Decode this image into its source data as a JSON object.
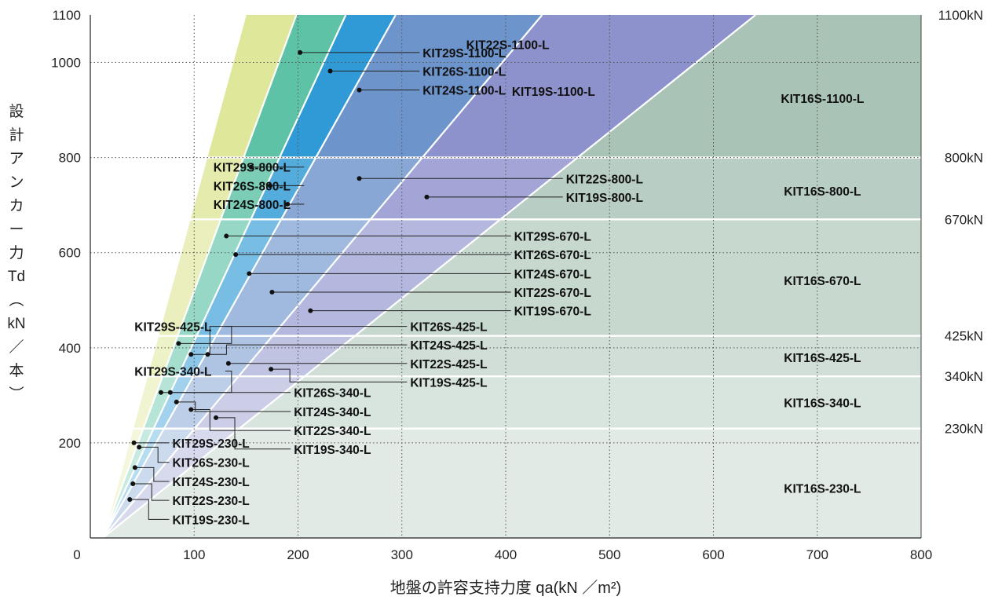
{
  "chart_data": {
    "type": "area",
    "xlabel": "地盤の許容支持力度 qa(kN ／m²)",
    "ylabel_lines": [
      "設",
      "計",
      "ア",
      "ン",
      "カ",
      "ー",
      "力",
      "Td",
      "︵",
      "kN",
      "／",
      "本",
      "︶"
    ],
    "xlim": [
      0,
      800
    ],
    "ylim": [
      0,
      1100
    ],
    "x_ticks": [
      0,
      100,
      200,
      300,
      400,
      500,
      600,
      700,
      800
    ],
    "y_ticks": [
      200,
      400,
      600,
      800,
      1000,
      1100
    ],
    "grid": true,
    "capacity_levels": [
      {
        "value": 230,
        "label": "230kN"
      },
      {
        "value": 340,
        "label": "340kN"
      },
      {
        "value": 425,
        "label": "425kN"
      },
      {
        "value": 670,
        "label": "670kN"
      },
      {
        "value": 800,
        "label": "800kN"
      },
      {
        "value": 1100,
        "label": "1100kN"
      }
    ],
    "boundaries": [
      {
        "slope": 8.0
      },
      {
        "slope": 5.9
      },
      {
        "slope": 4.7
      },
      {
        "slope": 3.9
      },
      {
        "slope": 2.6
      },
      {
        "slope": 1.75
      }
    ],
    "series": [
      {
        "name": "KIT29S",
        "color": "#dfe79a"
      },
      {
        "name": "KIT26S",
        "color": "#5ec3a6"
      },
      {
        "name": "KIT24S",
        "color": "#2f9ad6"
      },
      {
        "name": "KIT22S",
        "color": "#6e94cc"
      },
      {
        "name": "KIT19S",
        "color": "#8e92cc"
      },
      {
        "name": "KIT16S",
        "color": "#a9c3b6"
      }
    ],
    "labels": [
      {
        "text": "KIT29S-1100-L",
        "point": [
          202,
          1021
        ],
        "anchor": [
          317,
          1021
        ]
      },
      {
        "text": "KIT26S-1100-L",
        "point": [
          231,
          982
        ],
        "anchor": [
          317,
          982
        ]
      },
      {
        "text": "KIT24S-1100-L",
        "point": [
          259,
          942
        ],
        "anchor": [
          317,
          942
        ]
      },
      {
        "text": "KIT22S-1100-L",
        "inside": [
          402,
          1038
        ]
      },
      {
        "text": "KIT19S-1100-L",
        "inside": [
          446,
          940
        ]
      },
      {
        "text": "KIT16S-1100-L",
        "inside": [
          705,
          925
        ]
      },
      {
        "text": "KIT29S-800-L",
        "point": [
          155,
          780
        ],
        "anchor": [
          114,
          780
        ]
      },
      {
        "text": "KIT26S-800-L",
        "point": [
          173,
          741
        ],
        "anchor": [
          114,
          741
        ]
      },
      {
        "text": "KIT24S-800-L",
        "point": [
          190,
          702
        ],
        "anchor": [
          114,
          702
        ]
      },
      {
        "text": "KIT22S-800-L",
        "point": [
          259,
          756
        ],
        "anchor": [
          455,
          756
        ]
      },
      {
        "text": "KIT19S-800-L",
        "point": [
          324,
          717
        ],
        "anchor": [
          455,
          717
        ]
      },
      {
        "text": "KIT16S-800-L",
        "inside": [
          705,
          730
        ]
      },
      {
        "text": "KIT29S-670-L",
        "point": [
          131,
          635
        ],
        "anchor": [
          405,
          635
        ]
      },
      {
        "text": "KIT26S-670-L",
        "point": [
          140,
          596
        ],
        "anchor": [
          405,
          596
        ]
      },
      {
        "text": "KIT24S-670-L",
        "point": [
          153,
          556
        ],
        "anchor": [
          405,
          556
        ]
      },
      {
        "text": "KIT22S-670-L",
        "point": [
          175,
          517
        ],
        "anchor": [
          405,
          517
        ]
      },
      {
        "text": "KIT19S-670-L",
        "point": [
          212,
          478
        ],
        "anchor": [
          405,
          478
        ]
      },
      {
        "text": "KIT16S-670-L",
        "inside": [
          705,
          542
        ]
      },
      {
        "text": "KIT29S-425-L",
        "point": [
          85,
          409
        ],
        "anchor": [
          38,
          445
        ]
      },
      {
        "text": "KIT26S-425-L",
        "point": [
          97,
          386
        ],
        "anchor": [
          305,
          445
        ]
      },
      {
        "text": "KIT24S-425-L",
        "point": [
          113,
          386
        ],
        "anchor": [
          305,
          406
        ]
      },
      {
        "text": "KIT22S-425-L",
        "point": [
          133,
          367
        ],
        "anchor": [
          305,
          367
        ]
      },
      {
        "text": "KIT19S-425-L",
        "point": [
          174,
          355
        ],
        "anchor": [
          305,
          328
        ]
      },
      {
        "text": "KIT16S-425-L",
        "inside": [
          705,
          380
        ]
      },
      {
        "text": "KIT29S-340-L",
        "point": [
          68,
          306
        ],
        "anchor": [
          38,
          351
        ]
      },
      {
        "text": "KIT26S-340-L",
        "point": [
          77,
          306
        ],
        "anchor": [
          193,
          306
        ]
      },
      {
        "text": "KIT24S-340-L",
        "point": [
          83,
          286
        ],
        "anchor": [
          193,
          266
        ]
      },
      {
        "text": "KIT22S-340-L",
        "point": [
          97,
          270
        ],
        "anchor": [
          193,
          226
        ]
      },
      {
        "text": "KIT19S-340-L",
        "point": [
          121,
          253
        ],
        "anchor": [
          193,
          187
        ]
      },
      {
        "text": "KIT16S-340-L",
        "inside": [
          705,
          285
        ]
      },
      {
        "text": "KIT29S-230-L",
        "point": [
          42,
          200
        ],
        "anchor": [
          76,
          200
        ]
      },
      {
        "text": "KIT26S-230-L",
        "point": [
          47,
          191
        ],
        "anchor": [
          76,
          159
        ]
      },
      {
        "text": "KIT24S-230-L",
        "point": [
          43,
          148
        ],
        "anchor": [
          76,
          119
        ]
      },
      {
        "text": "KIT22S-230-L",
        "point": [
          41,
          114
        ],
        "anchor": [
          76,
          79
        ]
      },
      {
        "text": "KIT19S-230-L",
        "point": [
          38,
          81
        ],
        "anchor": [
          76,
          39
        ]
      },
      {
        "text": "KIT16S-230-L",
        "inside": [
          705,
          105
        ]
      }
    ]
  }
}
